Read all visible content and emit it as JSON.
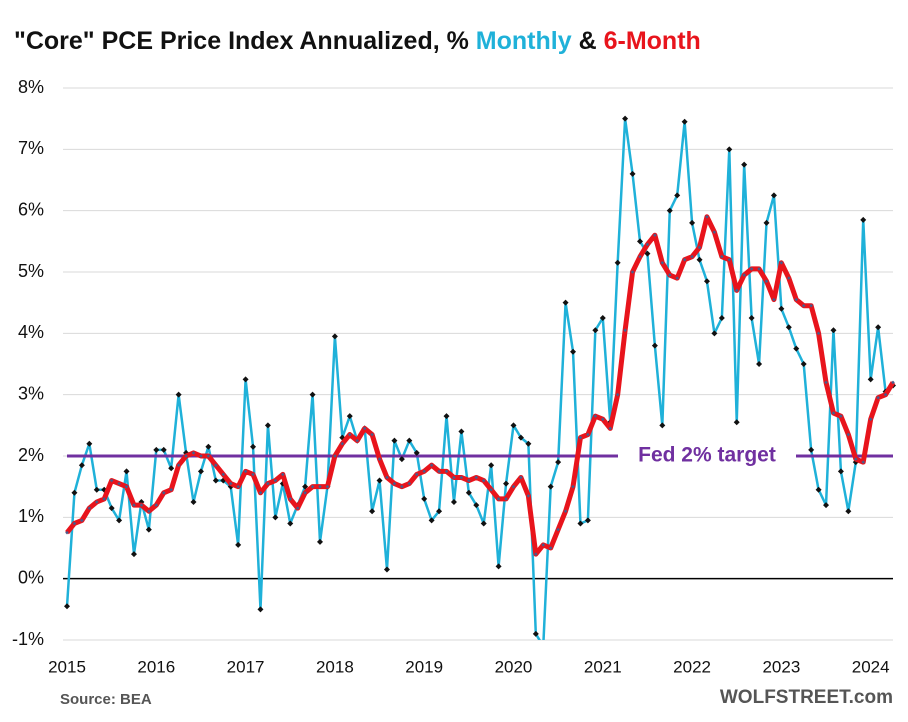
{
  "chart_data": {
    "type": "line",
    "title": "\"Core\" PCE Price Index Annualized, %",
    "title_joiner": "&",
    "source": "Source: BEA",
    "credit": "WOLFSTREET.com",
    "categories": [
      "2015",
      null,
      null,
      null,
      null,
      null,
      null,
      null,
      null,
      null,
      null,
      null,
      "2016",
      null,
      null,
      null,
      null,
      null,
      null,
      null,
      null,
      null,
      null,
      null,
      "2017",
      null,
      null,
      null,
      null,
      null,
      null,
      null,
      null,
      null,
      null,
      null,
      "2018",
      null,
      null,
      null,
      null,
      null,
      null,
      null,
      null,
      null,
      null,
      null,
      "2019",
      null,
      null,
      null,
      null,
      null,
      null,
      null,
      null,
      null,
      null,
      null,
      "2020",
      null,
      null,
      null,
      null,
      null,
      null,
      null,
      null,
      null,
      null,
      null,
      "2021",
      null,
      null,
      null,
      null,
      null,
      null,
      null,
      null,
      null,
      null,
      null,
      "2022",
      null,
      null,
      null,
      null,
      null,
      null,
      null,
      null,
      null,
      null,
      null,
      "2023",
      null,
      null,
      null,
      null,
      null,
      null,
      null,
      null,
      null,
      null,
      null,
      "2024",
      null,
      null,
      null
    ],
    "series": [
      {
        "name": "Monthly",
        "color": "#1fb1d9",
        "marker_color": "#111111",
        "width": 2.5,
        "values": [
          -0.45,
          1.4,
          1.85,
          2.2,
          1.45,
          1.45,
          1.15,
          0.95,
          1.75,
          0.4,
          1.25,
          0.8,
          2.1,
          2.1,
          1.8,
          3.0,
          2.05,
          1.25,
          1.75,
          2.15,
          1.6,
          1.6,
          1.5,
          0.55,
          3.25,
          2.15,
          -0.5,
          2.5,
          1.0,
          1.55,
          0.9,
          1.2,
          1.5,
          3.0,
          0.6,
          1.5,
          3.95,
          2.3,
          2.65,
          2.25,
          2.45,
          1.1,
          1.6,
          0.15,
          2.25,
          1.95,
          2.25,
          2.05,
          1.3,
          0.95,
          1.1,
          2.65,
          1.25,
          2.4,
          1.4,
          1.2,
          0.9,
          1.85,
          0.2,
          1.55,
          2.5,
          2.3,
          2.2,
          -0.9,
          -1.1,
          1.5,
          1.9,
          4.5,
          3.7,
          0.9,
          0.95,
          4.05,
          4.25,
          2.55,
          5.15,
          7.5,
          6.6,
          5.5,
          5.3,
          3.8,
          2.5,
          6.0,
          6.25,
          7.45,
          5.8,
          5.2,
          4.85,
          4.0,
          4.25,
          7.0,
          2.55,
          6.75,
          4.25,
          3.5,
          5.8,
          6.25,
          4.4,
          4.1,
          3.75,
          3.5,
          2.1,
          1.45,
          1.2,
          4.05,
          1.75,
          1.1,
          1.9,
          5.85,
          3.25,
          4.1,
          3.05,
          3.15
        ]
      },
      {
        "name": "6-Month",
        "color": "#e8141c",
        "marker_color": "#4b5a8a",
        "width": 5,
        "values": [
          0.75,
          0.9,
          0.95,
          1.15,
          1.25,
          1.3,
          1.6,
          1.55,
          1.5,
          1.2,
          1.2,
          1.1,
          1.2,
          1.4,
          1.45,
          1.85,
          2.0,
          2.05,
          2.0,
          2.0,
          1.85,
          1.7,
          1.55,
          1.5,
          1.75,
          1.7,
          1.4,
          1.55,
          1.6,
          1.7,
          1.3,
          1.15,
          1.4,
          1.5,
          1.5,
          1.5,
          2.0,
          2.2,
          2.35,
          2.25,
          2.45,
          2.35,
          1.95,
          1.65,
          1.55,
          1.5,
          1.55,
          1.7,
          1.75,
          1.85,
          1.75,
          1.75,
          1.65,
          1.65,
          1.6,
          1.65,
          1.6,
          1.45,
          1.3,
          1.3,
          1.5,
          1.65,
          1.35,
          0.4,
          0.55,
          0.5,
          0.8,
          1.1,
          1.5,
          2.3,
          2.35,
          2.65,
          2.6,
          2.45,
          3.0,
          4.05,
          5.0,
          5.25,
          5.45,
          5.6,
          5.15,
          4.95,
          4.9,
          5.2,
          5.25,
          5.4,
          5.9,
          5.65,
          5.25,
          5.2,
          4.7,
          4.95,
          5.05,
          5.05,
          4.85,
          4.55,
          5.15,
          4.9,
          4.55,
          4.45,
          4.45,
          4.0,
          3.2,
          2.7,
          2.65,
          2.35,
          1.95,
          1.9,
          2.6,
          2.95,
          3.0,
          3.2
        ]
      }
    ],
    "reference_line": {
      "value": 2,
      "label": "Fed 2% target",
      "color": "#7030a0"
    },
    "ylim": [
      -1,
      8
    ],
    "yticks": [
      {
        "value": -1,
        "label": "-1%"
      },
      {
        "value": 0,
        "label": "0%"
      },
      {
        "value": 1,
        "label": "1%"
      },
      {
        "value": 2,
        "label": "2%"
      },
      {
        "value": 3,
        "label": "3%"
      },
      {
        "value": 4,
        "label": "4%"
      },
      {
        "value": 5,
        "label": "5%"
      },
      {
        "value": 6,
        "label": "6%"
      },
      {
        "value": 7,
        "label": "7%"
      },
      {
        "value": 8,
        "label": "8%"
      }
    ],
    "grid": true
  }
}
